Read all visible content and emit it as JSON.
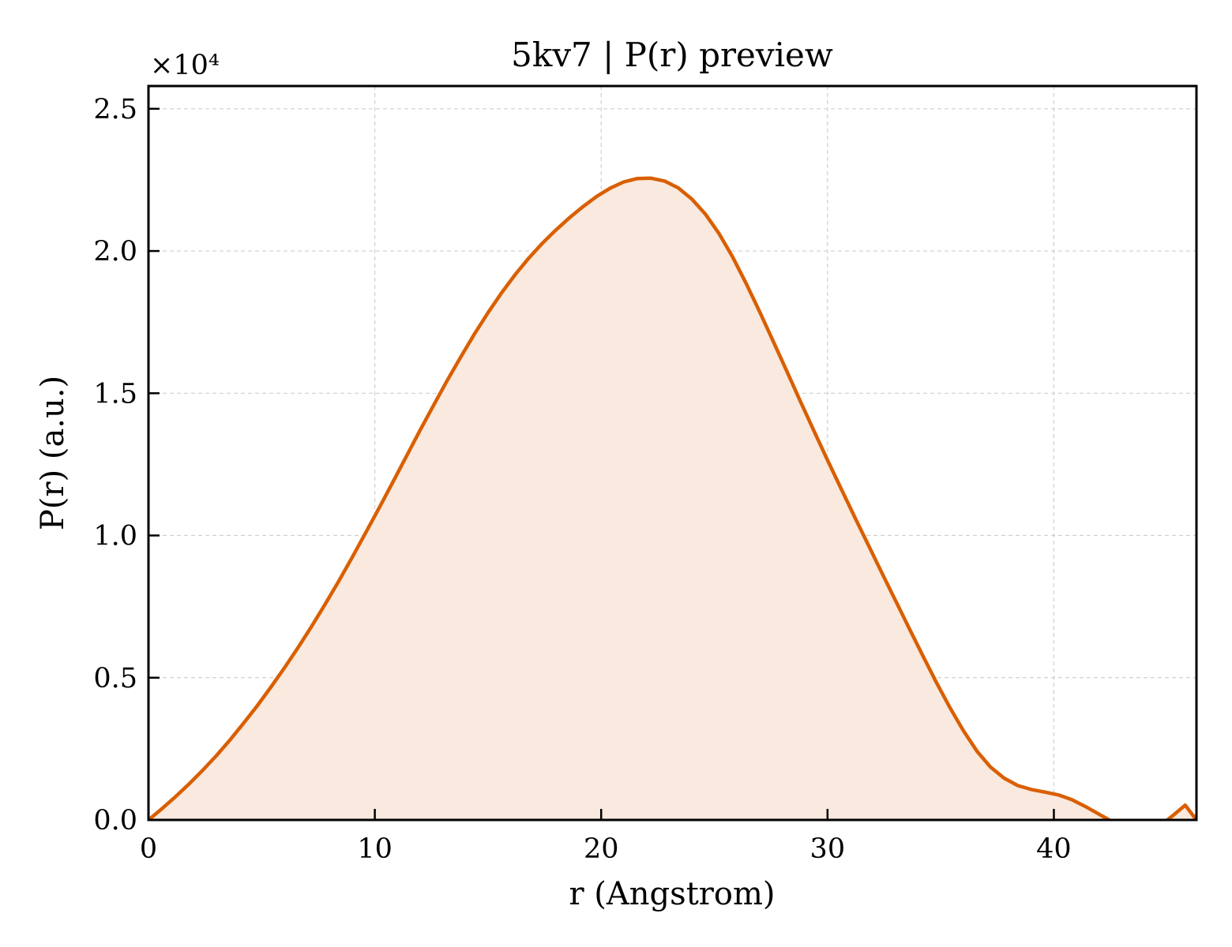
{
  "chart_data": {
    "type": "area",
    "title": "5kv7 | P(r) preview",
    "xlabel": "r (Angstrom)",
    "ylabel": "P(r) (a.u.)",
    "y_offset_label": "×10⁴",
    "xlim": [
      0,
      46.3
    ],
    "ylim": [
      0,
      25800
    ],
    "x_ticks": [
      0,
      10,
      20,
      30,
      40
    ],
    "x_tick_labels": [
      "0",
      "10",
      "20",
      "30",
      "40"
    ],
    "y_ticks": [
      0,
      5000,
      10000,
      15000,
      20000,
      25000
    ],
    "y_tick_labels": [
      "0.0",
      "0.5",
      "1.0",
      "1.5",
      "2.0",
      "2.5"
    ],
    "grid": true,
    "line_color": "#d95f02",
    "fill_color": "#f9e9df",
    "series": [
      {
        "x": [
          0,
          0.6,
          1.2,
          1.8,
          2.4,
          3.0,
          3.6,
          4.2,
          4.8,
          5.4,
          6.0,
          6.6,
          7.2,
          7.8,
          8.4,
          9.0,
          9.6,
          10.2,
          10.8,
          11.4,
          12.0,
          12.6,
          13.2,
          13.8,
          14.4,
          15.0,
          15.6,
          16.2,
          16.8,
          17.4,
          18.0,
          18.6,
          19.2,
          19.8,
          20.4,
          21.0,
          21.6,
          22.2,
          22.8,
          23.4,
          24.0,
          24.6,
          25.2,
          25.8,
          26.4,
          27.0,
          27.6,
          28.2,
          28.8,
          29.4,
          30.0,
          30.6,
          31.2,
          31.8,
          32.4,
          33.0,
          33.6,
          34.2,
          34.8,
          35.4,
          36.0,
          36.6,
          37.2,
          37.8,
          38.4,
          39.0,
          39.6,
          40.2,
          40.8,
          41.4,
          42.0,
          42.6,
          43.2,
          44.1,
          44.7,
          45.3,
          45.8,
          46.3
        ],
        "y": [
          0,
          400,
          820,
          1270,
          1750,
          2260,
          2810,
          3400,
          4010,
          4660,
          5340,
          6050,
          6800,
          7580,
          8390,
          9230,
          10100,
          10980,
          11880,
          12790,
          13700,
          14580,
          15450,
          16280,
          17080,
          17830,
          18530,
          19170,
          19750,
          20270,
          20740,
          21170,
          21560,
          21920,
          22210,
          22430,
          22550,
          22560,
          22460,
          22220,
          21830,
          21300,
          20620,
          19800,
          18870,
          17870,
          16830,
          15780,
          14720,
          13680,
          12650,
          11650,
          10650,
          9670,
          8690,
          7720,
          6750,
          5790,
          4850,
          3960,
          3140,
          2420,
          1860,
          1470,
          1210,
          1070,
          980,
          880,
          710,
          470,
          200,
          -70,
          -340,
          -420,
          -200,
          180,
          520,
          0
        ]
      }
    ]
  }
}
